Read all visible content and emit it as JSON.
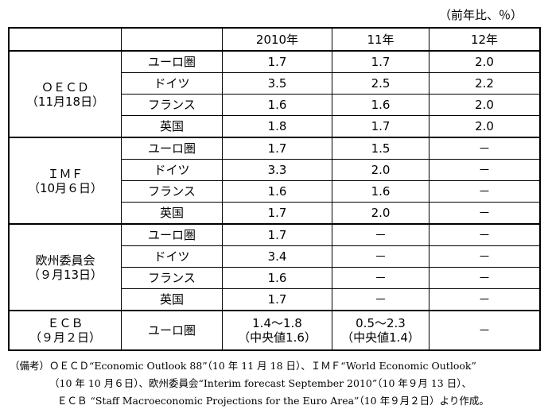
{
  "unit": "（前年比、％）",
  "header": [
    "2010年",
    "11年",
    "12年"
  ],
  "groups": [
    {
      "name": "ＯＥＣＤ",
      "date": "（11月18日）",
      "rows": [
        {
          "country": "ユーロ圏",
          "values": [
            "1.7",
            "1.7",
            "2.0"
          ]
        },
        {
          "country": "ドイツ",
          "values": [
            "3.5",
            "2.5",
            "2.2"
          ]
        },
        {
          "country": "フランス",
          "values": [
            "1.6",
            "1.6",
            "2.0"
          ]
        },
        {
          "country": "英国",
          "values": [
            "1.8",
            "1.7",
            "2.0"
          ]
        }
      ]
    },
    {
      "name": "ＩＭＦ",
      "date": "（10月６日）",
      "rows": [
        {
          "country": "ユーロ圏",
          "values": [
            "1.7",
            "1.5",
            "－"
          ]
        },
        {
          "country": "ドイツ",
          "values": [
            "3.3",
            "2.0",
            "－"
          ]
        },
        {
          "country": "フランス",
          "values": [
            "1.6",
            "1.6",
            "－"
          ]
        },
        {
          "country": "英国",
          "values": [
            "1.7",
            "2.0",
            "－"
          ]
        }
      ]
    },
    {
      "name": "欧州委員会",
      "date": "（９月13日）",
      "rows": [
        {
          "country": "ユーロ圏",
          "values": [
            "1.7",
            "－",
            "－"
          ]
        },
        {
          "country": "ドイツ",
          "values": [
            "3.4",
            "－",
            "－"
          ]
        },
        {
          "country": "フランス",
          "values": [
            "1.6",
            "－",
            "－"
          ]
        },
        {
          "country": "英国",
          "values": [
            "1.7",
            "－",
            "－"
          ]
        }
      ]
    },
    {
      "name": "ＥＣＢ",
      "date": "（９月２日）",
      "rows": [
        {
          "country": "ユーロ圏",
          "values": [
            [
              "1.4〜1.8",
              "（中央値1.6）"
            ],
            [
              "0.5〜2.3",
              "（中央値1.4）"
            ],
            "－"
          ]
        }
      ]
    }
  ],
  "notes": [
    "（備考）ＯＥＣＤ“Economic Outlook 88”（10 年 11 月 18 日）、ＩＭＦ“World Economic Outlook”",
    "（10 年 10 月６日）、欧州委員会“Interim forecast September 2010”（10 年９月 13 日）、",
    "ＥＣＢ “Staff Macroeconomic Projections for the Euro Area”（10 年９月２日）より作成。"
  ]
}
